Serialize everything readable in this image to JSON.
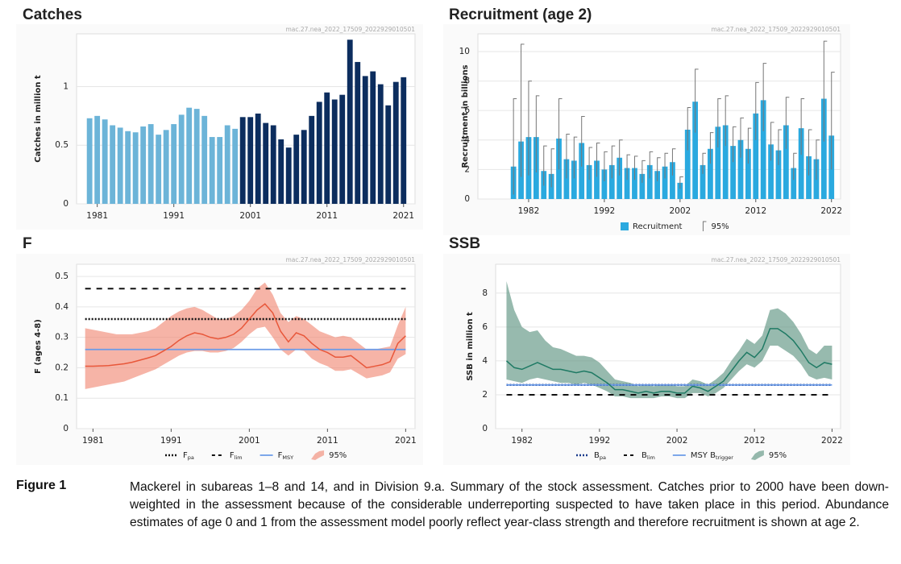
{
  "chart_data": [
    {
      "type": "bar",
      "title": "Catches",
      "source_note": "mac.27.nea_2022_17509_2022929010501",
      "y_label": "Catches in million t",
      "x": [
        1980,
        1981,
        1982,
        1983,
        1984,
        1985,
        1986,
        1987,
        1988,
        1989,
        1990,
        1991,
        1992,
        1993,
        1994,
        1995,
        1996,
        1997,
        1998,
        1999,
        2000,
        2001,
        2002,
        2003,
        2004,
        2005,
        2006,
        2007,
        2008,
        2009,
        2010,
        2011,
        2012,
        2013,
        2014,
        2015,
        2016,
        2017,
        2018,
        2019,
        2020,
        2021
      ],
      "xlim": [
        1978.3,
        2022.5
      ],
      "xticks": [
        1981,
        1991,
        2001,
        2011,
        2021
      ],
      "ylim": [
        0,
        1.45
      ],
      "yticks": [
        0,
        0.5,
        1
      ],
      "grid": true,
      "series": [
        {
          "values": [
            0.73,
            0.75,
            0.72,
            0.67,
            0.65,
            0.62,
            0.61,
            0.66,
            0.68,
            0.59,
            0.63,
            0.68,
            0.76,
            0.82,
            0.81,
            0.75,
            0.57,
            0.57,
            0.67,
            0.64,
            0.74,
            0.74,
            0.77,
            0.69,
            0.67,
            0.55,
            0.48,
            0.59,
            0.63,
            0.75,
            0.87,
            0.95,
            0.89,
            0.93,
            1.4,
            1.21,
            1.09,
            1.13,
            1.02,
            0.84,
            1.04,
            1.08
          ],
          "colors": [
            "#6cb4d8",
            "#6cb4d8",
            "#6cb4d8",
            "#6cb4d8",
            "#6cb4d8",
            "#6cb4d8",
            "#6cb4d8",
            "#6cb4d8",
            "#6cb4d8",
            "#6cb4d8",
            "#6cb4d8",
            "#6cb4d8",
            "#6cb4d8",
            "#6cb4d8",
            "#6cb4d8",
            "#6cb4d8",
            "#6cb4d8",
            "#6cb4d8",
            "#6cb4d8",
            "#6cb4d8",
            "#0c2d5e",
            "#0c2d5e",
            "#0c2d5e",
            "#0c2d5e",
            "#0c2d5e",
            "#0c2d5e",
            "#0c2d5e",
            "#0c2d5e",
            "#0c2d5e",
            "#0c2d5e",
            "#0c2d5e",
            "#0c2d5e",
            "#0c2d5e",
            "#0c2d5e",
            "#0c2d5e",
            "#0c2d5e",
            "#0c2d5e",
            "#0c2d5e",
            "#0c2d5e",
            "#0c2d5e",
            "#0c2d5e",
            "#0c2d5e"
          ]
        }
      ],
      "title_color": "#1a3b6e"
    },
    {
      "type": "bar",
      "title": "Recruitment (age 2)",
      "source_note": "mac.27.nea_2022_17509_2022929010501",
      "y_label": "Recruitment in billions",
      "x": [
        1980,
        1981,
        1982,
        1983,
        1984,
        1985,
        1986,
        1987,
        1988,
        1989,
        1990,
        1991,
        1992,
        1993,
        1994,
        1995,
        1996,
        1997,
        1998,
        1999,
        2000,
        2001,
        2002,
        2003,
        2004,
        2005,
        2006,
        2007,
        2008,
        2009,
        2010,
        2011,
        2012,
        2013,
        2014,
        2015,
        2016,
        2017,
        2018,
        2019,
        2020,
        2021,
        2022
      ],
      "xlim": [
        1975.3,
        2023.2
      ],
      "xticks": [
        1982,
        1992,
        2002,
        2012,
        2022
      ],
      "ylim": [
        0,
        11.2
      ],
      "yticks": [
        0,
        2,
        4,
        6,
        8,
        10
      ],
      "grid": true,
      "series": [
        {
          "name": "Recruitment",
          "color": "#2aa9df",
          "values": [
            2.2,
            3.9,
            4.2,
            4.2,
            1.9,
            1.7,
            4.1,
            2.7,
            2.6,
            3.8,
            2.3,
            2.6,
            2.0,
            2.3,
            2.8,
            2.1,
            2.1,
            1.7,
            2.3,
            1.9,
            2.2,
            2.5,
            1.1,
            4.7,
            6.6,
            2.3,
            3.4,
            4.9,
            5.0,
            3.6,
            4.0,
            3.4,
            5.8,
            6.7,
            3.7,
            3.3,
            5.0,
            2.1,
            4.8,
            2.9,
            2.7,
            6.8,
            4.3
          ],
          "low": [
            0.3,
            1.5,
            1.6,
            1.8,
            0.9,
            0.8,
            2.0,
            1.4,
            1.4,
            2.2,
            1.3,
            1.5,
            1.2,
            1.4,
            1.6,
            1.3,
            1.3,
            1.1,
            1.4,
            1.2,
            1.4,
            1.6,
            0.7,
            3.3,
            4.5,
            1.7,
            2.4,
            3.5,
            3.6,
            2.5,
            2.8,
            2.4,
            4.0,
            4.6,
            2.6,
            2.3,
            3.4,
            1.3,
            3.0,
            1.6,
            1.3,
            3.9,
            2.0
          ],
          "high": [
            6.8,
            10.5,
            8.0,
            7.0,
            3.6,
            3.4,
            6.8,
            4.4,
            4.2,
            5.6,
            3.5,
            3.8,
            3.2,
            3.6,
            4.0,
            3.0,
            2.9,
            2.6,
            3.2,
            2.8,
            3.1,
            3.4,
            1.5,
            6.2,
            8.8,
            3.1,
            4.5,
            6.8,
            7.0,
            4.9,
            5.5,
            4.8,
            7.9,
            9.2,
            5.2,
            4.7,
            6.9,
            3.1,
            6.8,
            4.7,
            4.0,
            10.7,
            8.6
          ]
        }
      ],
      "interval_name": "95%",
      "error_color": "#777777",
      "legend": "bottom",
      "title_color": "#2aa9df"
    },
    {
      "type": "line",
      "title": "F",
      "source_note": "mac.27.nea_2022_17509_2022929010501",
      "y_label": "F (ages 4-8)",
      "x": [
        1980,
        1981,
        1982,
        1983,
        1984,
        1985,
        1986,
        1987,
        1988,
        1989,
        1990,
        1991,
        1992,
        1993,
        1994,
        1995,
        1996,
        1997,
        1998,
        1999,
        2000,
        2001,
        2002,
        2003,
        2004,
        2005,
        2006,
        2007,
        2008,
        2009,
        2010,
        2011,
        2012,
        2013,
        2014,
        2015,
        2016,
        2017,
        2018,
        2019,
        2020,
        2021
      ],
      "xlim": [
        1978.9,
        2022.2
      ],
      "xticks": [
        1981,
        1991,
        2001,
        2011,
        2021
      ],
      "ylim": [
        0,
        0.54
      ],
      "yticks": [
        0,
        0.1,
        0.2,
        0.3,
        0.4,
        0.5
      ],
      "grid": true,
      "series": [
        {
          "color": "#e8573a",
          "values": [
            0.205,
            0.205,
            0.206,
            0.207,
            0.21,
            0.213,
            0.218,
            0.225,
            0.232,
            0.24,
            0.255,
            0.27,
            0.29,
            0.305,
            0.315,
            0.31,
            0.3,
            0.295,
            0.3,
            0.31,
            0.33,
            0.36,
            0.39,
            0.41,
            0.38,
            0.32,
            0.285,
            0.315,
            0.305,
            0.28,
            0.26,
            0.25,
            0.235,
            0.235,
            0.24,
            0.22,
            0.2,
            0.205,
            0.21,
            0.22,
            0.28,
            0.305
          ],
          "low": [
            0.13,
            0.135,
            0.14,
            0.145,
            0.15,
            0.155,
            0.165,
            0.175,
            0.185,
            0.195,
            0.21,
            0.225,
            0.24,
            0.25,
            0.255,
            0.255,
            0.25,
            0.25,
            0.255,
            0.265,
            0.285,
            0.31,
            0.33,
            0.335,
            0.3,
            0.26,
            0.24,
            0.26,
            0.255,
            0.23,
            0.215,
            0.205,
            0.19,
            0.19,
            0.195,
            0.18,
            0.165,
            0.17,
            0.175,
            0.185,
            0.23,
            0.245
          ],
          "high": [
            0.33,
            0.325,
            0.32,
            0.315,
            0.31,
            0.31,
            0.31,
            0.315,
            0.32,
            0.33,
            0.35,
            0.37,
            0.385,
            0.395,
            0.4,
            0.39,
            0.375,
            0.36,
            0.36,
            0.37,
            0.39,
            0.42,
            0.46,
            0.48,
            0.44,
            0.38,
            0.35,
            0.37,
            0.36,
            0.34,
            0.32,
            0.31,
            0.3,
            0.305,
            0.3,
            0.28,
            0.26,
            0.26,
            0.265,
            0.27,
            0.34,
            0.4
          ]
        }
      ],
      "band_name": "95%",
      "band_color": "#f0826c",
      "band_opacity": 0.6,
      "reference_lines": [
        {
          "name": "F",
          "sub": "pa",
          "value": 0.36,
          "style": "dotted",
          "color": "#111111"
        },
        {
          "name": "F",
          "sub": "lim",
          "value": 0.46,
          "style": "dashed",
          "color": "#111111"
        },
        {
          "name": "F",
          "sub": "MSY",
          "value": 0.26,
          "style": "solid",
          "color": "#6b9be8"
        }
      ],
      "legend": "bottom",
      "title_color": "#e8673a"
    },
    {
      "type": "line",
      "title": "SSB",
      "source_note": "mac.27.nea_2022_17509_2022929010501",
      "y_label": "SSB in million t",
      "x": [
        1980,
        1981,
        1982,
        1983,
        1984,
        1985,
        1986,
        1987,
        1988,
        1989,
        1990,
        1991,
        1992,
        1993,
        1994,
        1995,
        1996,
        1997,
        1998,
        1999,
        2000,
        2001,
        2002,
        2003,
        2004,
        2005,
        2006,
        2007,
        2008,
        2009,
        2010,
        2011,
        2012,
        2013,
        2014,
        2015,
        2016,
        2017,
        2018,
        2019,
        2020,
        2021,
        2022
      ],
      "xlim": [
        1978.6,
        2023.1
      ],
      "xticks": [
        1982,
        1992,
        2002,
        2012,
        2022
      ],
      "ylim": [
        0,
        9.7
      ],
      "yticks": [
        0,
        2,
        4,
        6,
        8
      ],
      "grid": true,
      "series": [
        {
          "color": "#1f7a64",
          "values": [
            4.0,
            3.6,
            3.5,
            3.7,
            3.9,
            3.7,
            3.5,
            3.5,
            3.4,
            3.3,
            3.4,
            3.3,
            3.0,
            2.7,
            2.3,
            2.3,
            2.2,
            2.1,
            2.2,
            2.1,
            2.2,
            2.2,
            2.1,
            2.1,
            2.5,
            2.4,
            2.2,
            2.5,
            2.8,
            3.4,
            4.0,
            4.5,
            4.2,
            4.7,
            5.9,
            5.9,
            5.6,
            5.2,
            4.6,
            3.9,
            3.6,
            3.9,
            3.8
          ],
          "low": [
            2.9,
            2.8,
            2.7,
            2.9,
            3.0,
            2.9,
            2.8,
            2.7,
            2.7,
            2.6,
            2.7,
            2.6,
            2.4,
            2.2,
            1.9,
            1.9,
            1.8,
            1.8,
            1.8,
            1.8,
            1.9,
            1.9,
            1.8,
            1.8,
            2.1,
            2.1,
            1.9,
            2.1,
            2.4,
            2.9,
            3.4,
            3.8,
            3.6,
            4.0,
            4.9,
            4.9,
            4.6,
            4.3,
            3.8,
            3.1,
            2.9,
            3.0,
            2.9
          ],
          "high": [
            8.7,
            7.0,
            6.0,
            5.7,
            5.8,
            5.2,
            4.8,
            4.7,
            4.5,
            4.3,
            4.3,
            4.2,
            3.9,
            3.4,
            2.9,
            2.8,
            2.7,
            2.5,
            2.6,
            2.5,
            2.6,
            2.6,
            2.5,
            2.5,
            2.9,
            2.8,
            2.6,
            2.9,
            3.3,
            4.0,
            4.6,
            5.3,
            5.0,
            5.5,
            7.0,
            7.1,
            6.8,
            6.3,
            5.6,
            4.7,
            4.4,
            4.9,
            4.9
          ]
        }
      ],
      "band_name": "95%",
      "band_color": "#5f9582",
      "band_opacity": 0.65,
      "reference_lines": [
        {
          "name": "B",
          "sub": "pa",
          "value": 2.58,
          "style": "dotted",
          "color": "#1a3b8c"
        },
        {
          "name": "B",
          "sub": "lim",
          "value": 2.0,
          "style": "dashed",
          "color": "#111111"
        },
        {
          "name": "MSY B",
          "sub": "trigger",
          "value": 2.58,
          "style": "solid",
          "color": "#6b9be8"
        }
      ],
      "legend": "bottom",
      "title_color": "#1f7a64"
    }
  ],
  "caption": {
    "label": "Figure 1",
    "text": "Mackerel in subareas 1–8 and 14, and in Division 9.a. Summary of the stock assessment. Catches prior to 2000 have been down-weighted in the assessment because of the considerable underreporting suspected to have taken place in this period. Abundance estimates of age 0 and 1 from the assessment model poorly reflect year-class strength and therefore recruitment is shown at age 2."
  }
}
